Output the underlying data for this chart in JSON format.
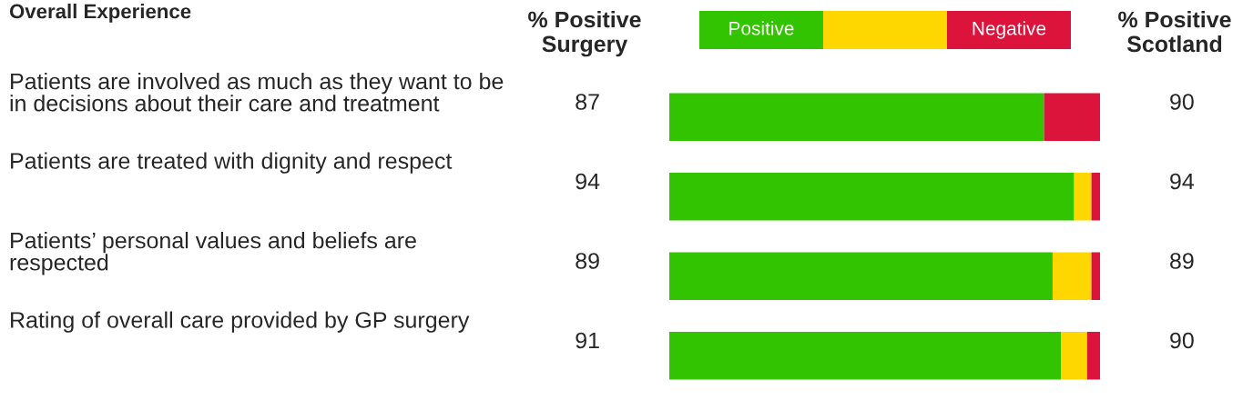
{
  "chart_data": {
    "type": "bar",
    "orientation": "horizontal",
    "stacked": true,
    "xlim": [
      0,
      100
    ],
    "title": "Overall Experience",
    "categories": [
      "Patients are involved as much as they want to be in decisions about their care and treatment",
      "Patients are treated with dignity and respect",
      "Patients’ personal values and beliefs are respected",
      "Rating of overall care provided by GP surgery"
    ],
    "series": [
      {
        "name": "Positive",
        "color": "#33c400",
        "values": [
          87,
          94,
          89,
          91
        ],
        "value_labels": [
          "87",
          "94",
          "89",
          "91"
        ]
      },
      {
        "color": "#ffd700",
        "values": [
          0,
          4,
          9,
          6
        ]
      },
      {
        "name": "Negative",
        "color": "#dc143c",
        "values": [
          13,
          2,
          2,
          3
        ]
      }
    ],
    "annotations": [
      "% Positive Surgery",
      "% Positive Scotland",
      "90",
      "94",
      "89",
      "90"
    ],
    "legend": "top"
  }
}
